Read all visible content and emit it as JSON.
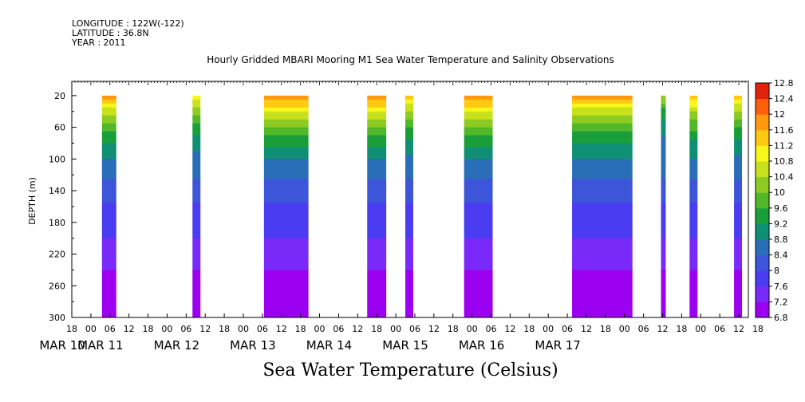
{
  "header": {
    "longitude": "LONGITUDE : 122W(-122)",
    "latitude": "LATITUDE : 36.8N",
    "year": "YEAR : 2011"
  },
  "chart_data": {
    "type": "heatmap",
    "title": "Hourly Gridded MBARI Mooring M1 Sea Water Temperature and Salinity Observations",
    "caption": "Sea Water Temperature (Celsius)",
    "ylabel": "DEPTH (m)",
    "ylim": [
      300,
      2
    ],
    "y_ticks": [
      20,
      60,
      100,
      140,
      180,
      220,
      260,
      300
    ],
    "x_start_hours_label": "MAR 10 18:00",
    "xlim_hours": [
      0,
      213
    ],
    "x_tick_labels": [
      "18",
      "00",
      "06",
      "12",
      "18",
      "00",
      "06",
      "12",
      "18",
      "00",
      "06",
      "12",
      "18",
      "00",
      "06",
      "12",
      "18",
      "00",
      "06",
      "12",
      "18",
      "00",
      "06",
      "12",
      "18",
      "00",
      "06",
      "12",
      "18",
      "00",
      "06",
      "12",
      "18",
      "00",
      "06",
      "12",
      "18"
    ],
    "date_labels": [
      {
        "label": "MAR 10",
        "hour": -3
      },
      {
        "label": "MAR 11",
        "hour": 9
      },
      {
        "label": "MAR 12",
        "hour": 33
      },
      {
        "label": "MAR 13",
        "hour": 57
      },
      {
        "label": "MAR 14",
        "hour": 81
      },
      {
        "label": "MAR 15",
        "hour": 105
      },
      {
        "label": "MAR 16",
        "hour": 129
      },
      {
        "label": "MAR 17",
        "hour": 153
      }
    ],
    "colorbar": {
      "levels": [
        6.8,
        7.2,
        7.6,
        8,
        8.4,
        8.8,
        9.2,
        9.6,
        10,
        10.4,
        10.8,
        11.2,
        11.6,
        12,
        12.4,
        12.8
      ],
      "labels": [
        "12.8",
        "12.4",
        "12",
        "11.6",
        "11.2",
        "10.8",
        "10.4",
        "10",
        "9.6",
        "9.2",
        "8.8",
        "8.4",
        "8",
        "7.6",
        "7.2",
        "6.8"
      ]
    },
    "data_segments": [
      {
        "start": 9.5,
        "end": 14,
        "surface_temp": 11.8
      },
      {
        "start": 38,
        "end": 40.5,
        "surface_temp": 11.2
      },
      {
        "start": 60.5,
        "end": 74.5,
        "surface_temp": 12.0
      },
      {
        "start": 93,
        "end": 99,
        "surface_temp": 12.0
      },
      {
        "start": 105,
        "end": 107.5,
        "surface_temp": 11.4
      },
      {
        "start": 123.5,
        "end": 132.5,
        "surface_temp": 12.0
      },
      {
        "start": 157.5,
        "end": 176.5,
        "surface_temp": 11.8
      },
      {
        "start": 185.5,
        "end": 187,
        "surface_temp": 10.4
      },
      {
        "start": 194.5,
        "end": 197,
        "surface_temp": 11.6
      },
      {
        "start": 208.5,
        "end": 211,
        "surface_temp": 11.4
      }
    ],
    "depth_profile": [
      {
        "depth": 20,
        "temp": 11.8
      },
      {
        "depth": 40,
        "temp": 10.6
      },
      {
        "depth": 60,
        "temp": 9.8
      },
      {
        "depth": 80,
        "temp": 9.2
      },
      {
        "depth": 100,
        "temp": 8.8
      },
      {
        "depth": 120,
        "temp": 8.5
      },
      {
        "depth": 140,
        "temp": 8.2
      },
      {
        "depth": 160,
        "temp": 7.9
      },
      {
        "depth": 180,
        "temp": 7.8
      },
      {
        "depth": 200,
        "temp": 7.6
      },
      {
        "depth": 220,
        "temp": 7.4
      },
      {
        "depth": 240,
        "temp": 7.2
      },
      {
        "depth": 260,
        "temp": 7.0
      },
      {
        "depth": 280,
        "temp": 6.9
      },
      {
        "depth": 300,
        "temp": 6.85
      }
    ]
  }
}
